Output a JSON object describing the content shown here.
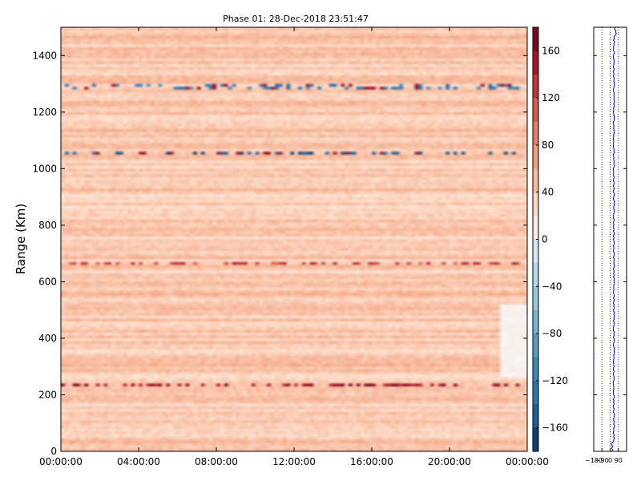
{
  "chart_data": [
    {
      "type": "heatmap",
      "title": "Phase 01: 28-Dec-2018 23:51:47",
      "ylabel": "Range (Km)",
      "xlabel": "",
      "x_ticks": [
        "00:00:00",
        "04:00:00",
        "08:00:00",
        "12:00:00",
        "16:00:00",
        "20:00:00",
        "00:00:00"
      ],
      "x_range_hours": [
        0,
        24
      ],
      "y_ticks": [
        0,
        200,
        400,
        600,
        800,
        1000,
        1200,
        1400
      ],
      "ylim": [
        0,
        1500
      ],
      "colorbar": {
        "ticks": [
          160,
          120,
          80,
          40,
          0,
          -40,
          -80,
          -120,
          -160
        ],
        "range": [
          -180,
          180
        ],
        "colormap": "RdBu_r"
      },
      "background_value": 40,
      "features": [
        {
          "desc": "high-value streak",
          "range_km": 233,
          "value": 150
        },
        {
          "desc": "low-value blue streak",
          "range_km": 1055,
          "value": -150
        },
        {
          "desc": "mixed streak",
          "range_km": 1290,
          "value": -120
        },
        {
          "desc": "mixed streak",
          "range_km": 667,
          "value": 120
        }
      ],
      "grid": false
    },
    {
      "type": "line",
      "title": "",
      "xlabel": "",
      "ylabel": "",
      "x_ticks": [
        "-180",
        "-90",
        "0",
        "90"
      ],
      "xlim": [
        -180,
        180
      ],
      "ylim": [
        0,
        1500
      ],
      "dotted_vlines": [
        -90,
        0,
        90
      ],
      "series": [
        {
          "color": "#0000cc",
          "profile_mean": 40
        }
      ],
      "grid": false
    }
  ],
  "colors": {
    "trace": "#0000cc",
    "axis": "#000000"
  }
}
